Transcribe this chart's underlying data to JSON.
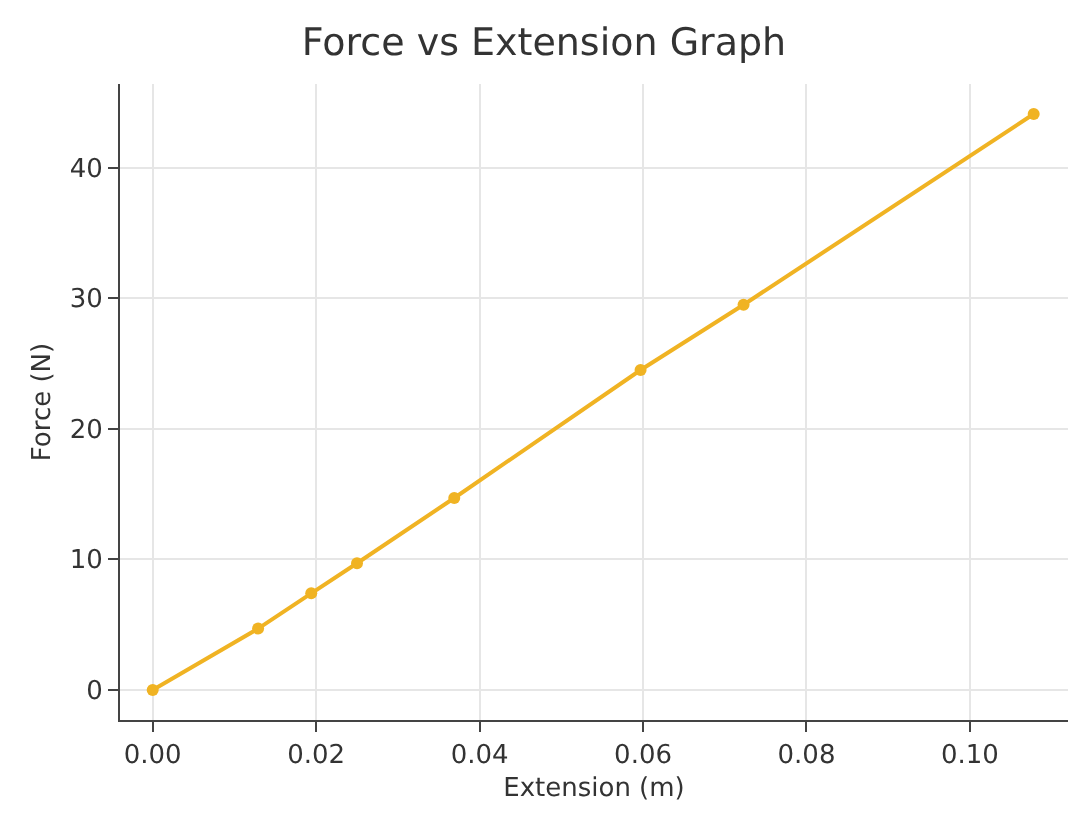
{
  "chart_data": {
    "type": "line",
    "title": "Force vs Extension Graph",
    "xlabel": "Extension (m)",
    "ylabel": "Force (N)",
    "x": [
      0,
      0.0129,
      0.0194,
      0.025,
      0.0369,
      0.0597,
      0.0723,
      0.1078
    ],
    "series": [
      {
        "color": "#f0b323",
        "values": [
          0,
          4.7,
          7.4,
          9.7,
          14.7,
          24.5,
          29.5,
          44.1
        ]
      }
    ],
    "xlim": [
      -0.004,
      0.112
    ],
    "xticks": [
      {
        "value": 0,
        "label": "0.00"
      },
      {
        "value": 0.02,
        "label": "0.02"
      },
      {
        "value": 0.04,
        "label": "0.04"
      },
      {
        "value": 0.06,
        "label": "0.06"
      },
      {
        "value": 0.08,
        "label": "0.08"
      },
      {
        "value": 0.1,
        "label": "0.10"
      }
    ],
    "ylim": [
      -2.3,
      46.4
    ],
    "yticks": [
      0,
      10,
      20,
      30,
      40
    ],
    "grid": true,
    "marker": "circle",
    "line_style": "solid"
  }
}
